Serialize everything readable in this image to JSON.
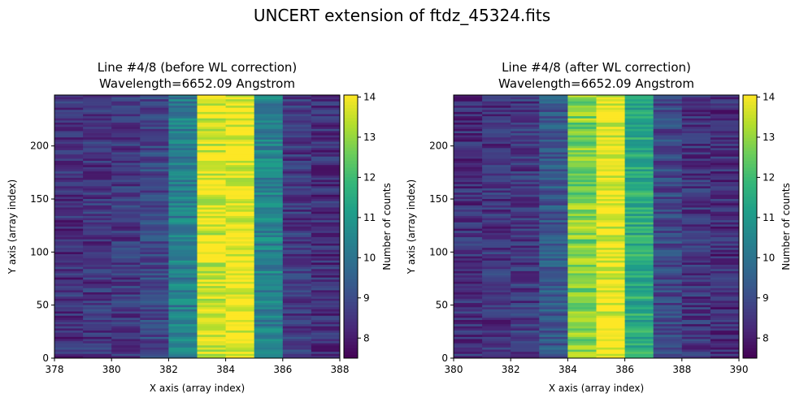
{
  "figure": {
    "suptitle": "UNCERT extension of ftdz_45324.fits"
  },
  "chart_data": [
    {
      "type": "heatmap",
      "title_line1": "Line #4/8 (before WL correction)",
      "title_line2": "Wavelength=6652.09 Angstrom",
      "xlabel": "X axis (array index)",
      "ylabel": "Y axis (array index)",
      "xlim": [
        378,
        388
      ],
      "ylim": [
        0,
        248
      ],
      "xticks": [
        378,
        380,
        382,
        384,
        386,
        388
      ],
      "xtick_labels": [
        "378",
        "380",
        "382",
        "384",
        "386",
        "388"
      ],
      "yticks": [
        0,
        50,
        100,
        150,
        200
      ],
      "ytick_labels": [
        "0",
        "50",
        "100",
        "150",
        "200"
      ],
      "columns_x_start": [
        378,
        379,
        380,
        381,
        382,
        383,
        384,
        385,
        386,
        387
      ],
      "column_mean_counts": [
        8.4,
        8.5,
        8.6,
        8.9,
        10.3,
        13.7,
        14.0,
        10.4,
        8.6,
        8.4
      ],
      "colorbar": {
        "label": "Number of counts",
        "range": [
          7.5,
          14.05
        ],
        "ticks": [
          8,
          9,
          10,
          11,
          12,
          13,
          14
        ],
        "tick_labels": [
          "8",
          "9",
          "10",
          "11",
          "12",
          "13",
          "14"
        ],
        "colormap": "viridis"
      }
    },
    {
      "type": "heatmap",
      "title_line1": "Line #4/8 (after WL correction)",
      "title_line2": "Wavelength=6652.09 Angstrom",
      "xlabel": "X axis (array index)",
      "ylabel": "Y axis (array index)",
      "xlim": [
        380,
        390
      ],
      "ylim": [
        0,
        248
      ],
      "xticks": [
        380,
        382,
        384,
        386,
        388,
        390
      ],
      "xtick_labels": [
        "380",
        "382",
        "384",
        "386",
        "388",
        "390"
      ],
      "yticks": [
        0,
        50,
        100,
        150,
        200
      ],
      "ytick_labels": [
        "0",
        "50",
        "100",
        "150",
        "200"
      ],
      "columns_x_start": [
        380,
        381,
        382,
        383,
        384,
        385,
        386,
        387,
        388,
        389
      ],
      "column_mean_counts": [
        8.4,
        8.5,
        8.6,
        9.3,
        12.8,
        13.9,
        11.5,
        8.9,
        8.5,
        8.3
      ],
      "colorbar": {
        "label": "Number of counts",
        "range": [
          7.5,
          14.05
        ],
        "ticks": [
          8,
          9,
          10,
          11,
          12,
          13,
          14
        ],
        "tick_labels": [
          "8",
          "9",
          "10",
          "11",
          "12",
          "13",
          "14"
        ],
        "colormap": "viridis"
      }
    }
  ]
}
